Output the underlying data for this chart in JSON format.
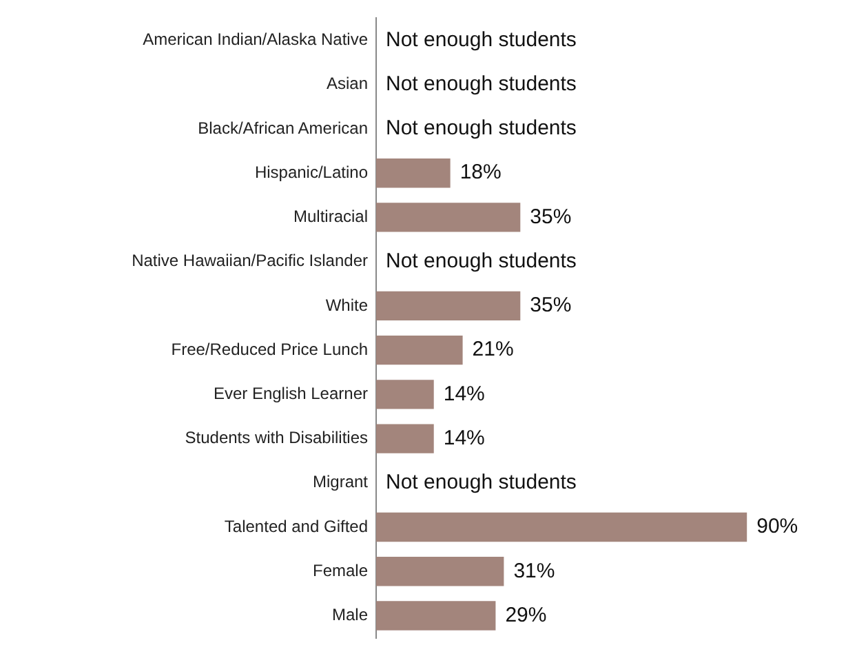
{
  "chart_data": {
    "type": "bar",
    "orientation": "horizontal",
    "categories": [
      "American Indian/Alaska Native",
      "Asian",
      "Black/African American",
      "Hispanic/Latino",
      "Multiracial",
      "Native Hawaiian/Pacific Islander",
      "White",
      "Free/Reduced Price Lunch",
      "Ever English Learner",
      "Students with Disabilities",
      "Migrant",
      "Talented and Gifted",
      "Female",
      "Male"
    ],
    "values": [
      null,
      null,
      null,
      18,
      35,
      null,
      35,
      21,
      14,
      14,
      null,
      90,
      31,
      29
    ],
    "value_labels": [
      "Not enough students",
      "Not enough students",
      "Not enough students",
      "18%",
      "35%",
      "Not enough students",
      "35%",
      "21%",
      "14%",
      "14%",
      "Not enough students",
      "90%",
      "31%",
      "29%"
    ],
    "color": "#a3857c",
    "tick_labels": "y",
    "legend": false
  }
}
